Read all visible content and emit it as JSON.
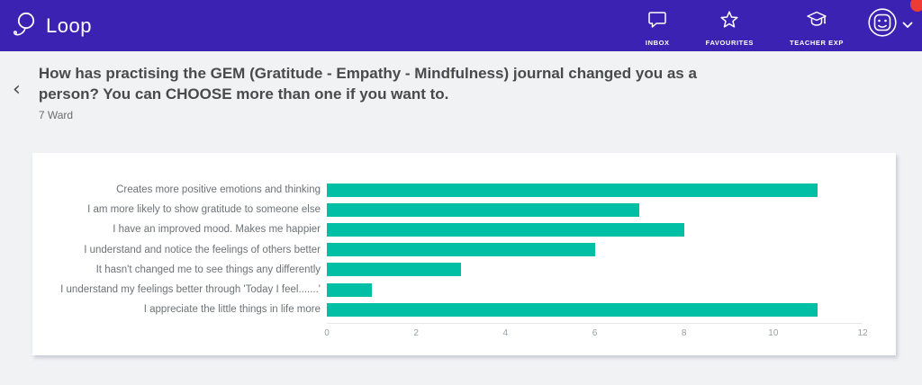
{
  "header": {
    "logo_text": "Loop",
    "nav": [
      {
        "label": "INBOX",
        "icon": "speech-bubble-icon"
      },
      {
        "label": "FAVOURITES",
        "icon": "star-icon"
      },
      {
        "label": "TEACHER EXP",
        "icon": "graduation-cap-icon"
      }
    ],
    "colors": {
      "header_bg": "#3b22b2",
      "notification_red": "#ee3b33"
    }
  },
  "question": {
    "back_icon": "‹",
    "title": "How has practising the GEM (Gratitude - Empathy - Mindfulness) journal changed you as a person? You can CHOOSE more than one if you want to.",
    "subtitle": "7 Ward"
  },
  "chart_data": {
    "type": "bar",
    "orientation": "horizontal",
    "categories": [
      "Creates more positive emotions and thinking",
      "I am more likely to show gratitude to someone else",
      "I have an improved mood. Makes me happier",
      "I understand and notice the feelings of others better",
      "It hasn't changed me to see things any differently",
      "I understand my feelings better through 'Today I feel.......'",
      "I appreciate the little things in life more"
    ],
    "values": [
      11,
      7,
      8,
      6,
      3,
      1,
      11
    ],
    "title": "",
    "xlabel": "",
    "ylabel": "",
    "xlim": [
      0,
      12
    ],
    "xticks": [
      0,
      2,
      4,
      6,
      8,
      10,
      12
    ],
    "bar_color": "#00bfa5",
    "grid": false,
    "legend": false
  }
}
